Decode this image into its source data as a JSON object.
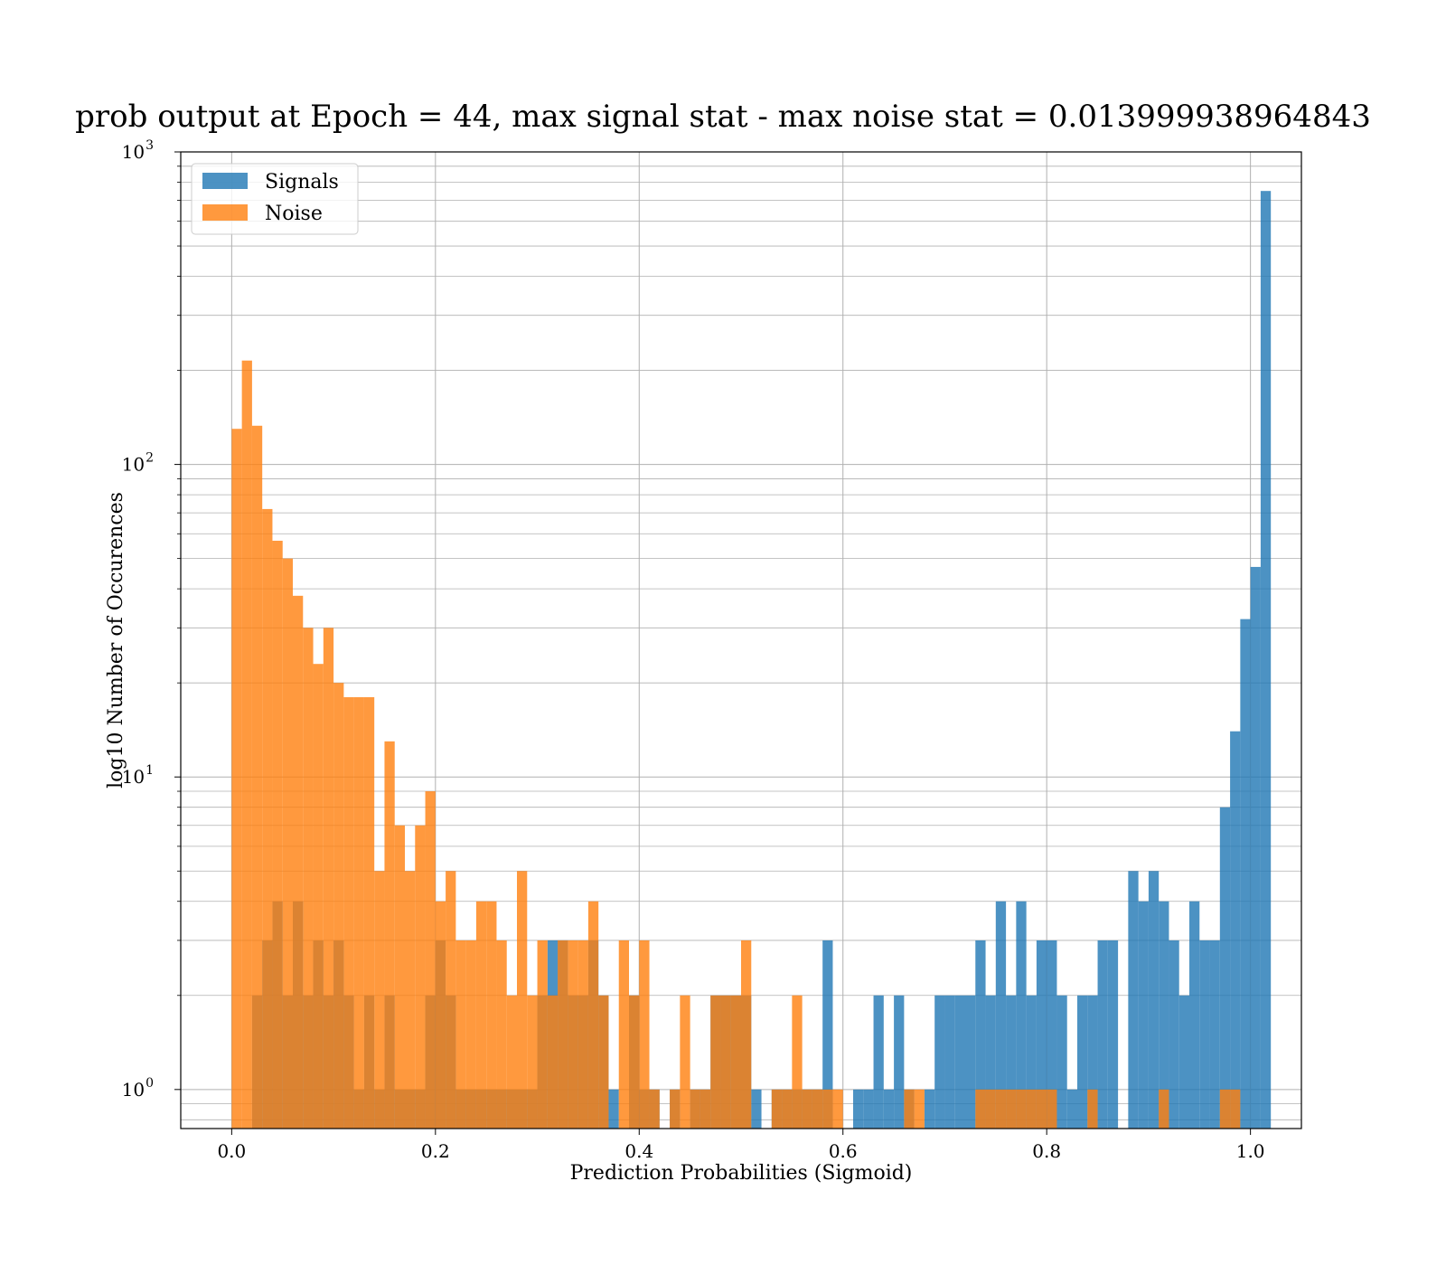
{
  "chart_data": {
    "type": "histogram",
    "title": "prob output at Epoch = 44, max signal stat - max noise stat = 0.013999938964843",
    "xlabel": "Prediction Probabilities (Sigmoid)",
    "ylabel": "log10 Number of Occurences",
    "xlim": [
      -0.05,
      1.05
    ],
    "ylim": [
      0.75,
      1000
    ],
    "yscale": "log",
    "grid": true,
    "legend_position": "top-left",
    "x_ticks": [
      "0.0",
      "0.2",
      "0.4",
      "0.6",
      "0.8",
      "1.0"
    ],
    "y_ticks": [
      {
        "base": "10",
        "exp": "0",
        "value": 1
      },
      {
        "base": "10",
        "exp": "1",
        "value": 10
      },
      {
        "base": "10",
        "exp": "2",
        "value": 100
      },
      {
        "base": "10",
        "exp": "3",
        "value": 1000
      }
    ],
    "series": [
      {
        "name": "Signals",
        "color": "#1f77b4",
        "bin_start": 0.0,
        "bin_width": 0.01,
        "counts": [
          0,
          0,
          2,
          3,
          4,
          2,
          4,
          2,
          3,
          2,
          3,
          2,
          1,
          2,
          1,
          2,
          1,
          1,
          1,
          2,
          3,
          2,
          1,
          1,
          1,
          1,
          1,
          1,
          1,
          1,
          2,
          3,
          3,
          2,
          2,
          3,
          2,
          1,
          0,
          2,
          1,
          1,
          0,
          1,
          0,
          1,
          1,
          2,
          2,
          2,
          2,
          1,
          0,
          1,
          1,
          1,
          1,
          1,
          3,
          0,
          0,
          1,
          1,
          2,
          1,
          2,
          1,
          0,
          1,
          2,
          2,
          2,
          2,
          3,
          2,
          4,
          2,
          4,
          2,
          3,
          3,
          2,
          1,
          2,
          2,
          3,
          3,
          0,
          5,
          4,
          5,
          4,
          3,
          2,
          4,
          3,
          3,
          8,
          14,
          32,
          47,
          750
        ]
      },
      {
        "name": "Noise",
        "color": "#ff7f0e",
        "bin_start": 0.0,
        "bin_width": 0.01,
        "counts": [
          130,
          215,
          133,
          72,
          57,
          50,
          38,
          30,
          23,
          30,
          20,
          18,
          18,
          18,
          5,
          13,
          7,
          5,
          7,
          9,
          4,
          5,
          3,
          3,
          4,
          4,
          3,
          2,
          5,
          2,
          3,
          2,
          3,
          3,
          3,
          4,
          2,
          0,
          3,
          2,
          3,
          1,
          0,
          1,
          2,
          1,
          1,
          2,
          2,
          2,
          3,
          0,
          0,
          1,
          1,
          2,
          1,
          1,
          1,
          1,
          0,
          0,
          0,
          0,
          0,
          0,
          1,
          1,
          0,
          0,
          0,
          0,
          0,
          1,
          1,
          1,
          1,
          1,
          1,
          1,
          1,
          0,
          0,
          0,
          1,
          0,
          0,
          0,
          0,
          0,
          0,
          1,
          0,
          0,
          0,
          0,
          0,
          1,
          1,
          0,
          0,
          0
        ]
      }
    ]
  }
}
